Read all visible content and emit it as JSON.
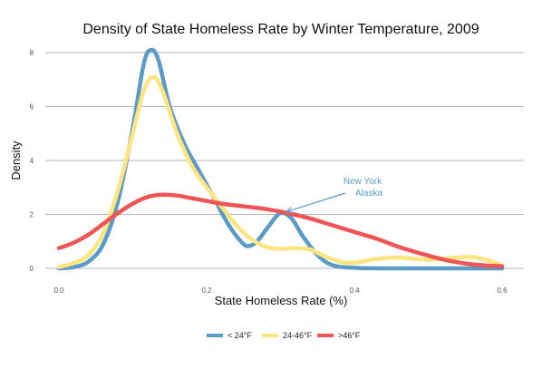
{
  "chart_data": {
    "type": "line",
    "title": "Density of State Homeless Rate by Winter Temperature, 2009",
    "xlabel": "State Homeless Rate (%)",
    "ylabel": "Density",
    "xlim": [
      0,
      0.6
    ],
    "ylim": [
      0,
      8
    ],
    "x_ticks": [
      "0.0",
      "0.2",
      "0.4",
      "0.6"
    ],
    "y_ticks": [
      "0",
      "2",
      "4",
      "6",
      "8"
    ],
    "grid": "horizontal",
    "legend_position": "bottom",
    "series": [
      {
        "name": "< 24°F",
        "color": "#5b9bc8",
        "points": [
          [
            0.0,
            0.0
          ],
          [
            0.02,
            0.05
          ],
          [
            0.04,
            0.25
          ],
          [
            0.06,
            0.9
          ],
          [
            0.08,
            2.5
          ],
          [
            0.1,
            5.2
          ],
          [
            0.115,
            7.6
          ],
          [
            0.125,
            8.1
          ],
          [
            0.135,
            7.7
          ],
          [
            0.15,
            6.0
          ],
          [
            0.17,
            4.6
          ],
          [
            0.19,
            3.6
          ],
          [
            0.21,
            2.6
          ],
          [
            0.23,
            1.6
          ],
          [
            0.25,
            0.9
          ],
          [
            0.26,
            0.85
          ],
          [
            0.27,
            1.05
          ],
          [
            0.285,
            1.6
          ],
          [
            0.3,
            2.05
          ],
          [
            0.315,
            1.85
          ],
          [
            0.33,
            1.2
          ],
          [
            0.35,
            0.5
          ],
          [
            0.37,
            0.12
          ],
          [
            0.4,
            0.02
          ],
          [
            0.45,
            0.0
          ],
          [
            0.6,
            0.0
          ]
        ]
      },
      {
        "name": "24-46°F",
        "color": "#ffe57f",
        "points": [
          [
            0.0,
            0.05
          ],
          [
            0.02,
            0.2
          ],
          [
            0.04,
            0.5
          ],
          [
            0.06,
            1.3
          ],
          [
            0.08,
            2.9
          ],
          [
            0.1,
            5.0
          ],
          [
            0.115,
            6.6
          ],
          [
            0.128,
            7.1
          ],
          [
            0.14,
            6.6
          ],
          [
            0.16,
            5.0
          ],
          [
            0.18,
            3.8
          ],
          [
            0.2,
            3.0
          ],
          [
            0.22,
            2.3
          ],
          [
            0.24,
            1.6
          ],
          [
            0.26,
            1.1
          ],
          [
            0.28,
            0.8
          ],
          [
            0.3,
            0.72
          ],
          [
            0.32,
            0.75
          ],
          [
            0.34,
            0.7
          ],
          [
            0.36,
            0.45
          ],
          [
            0.38,
            0.25
          ],
          [
            0.4,
            0.2
          ],
          [
            0.43,
            0.35
          ],
          [
            0.46,
            0.4
          ],
          [
            0.5,
            0.32
          ],
          [
            0.53,
            0.38
          ],
          [
            0.56,
            0.42
          ],
          [
            0.58,
            0.3
          ],
          [
            0.6,
            0.1
          ]
        ]
      },
      {
        "name": ">46°F",
        "color": "#ef5456",
        "points": [
          [
            0.0,
            0.75
          ],
          [
            0.02,
            0.95
          ],
          [
            0.04,
            1.25
          ],
          [
            0.06,
            1.65
          ],
          [
            0.08,
            2.05
          ],
          [
            0.1,
            2.4
          ],
          [
            0.12,
            2.65
          ],
          [
            0.14,
            2.73
          ],
          [
            0.16,
            2.7
          ],
          [
            0.18,
            2.6
          ],
          [
            0.2,
            2.5
          ],
          [
            0.22,
            2.4
          ],
          [
            0.25,
            2.3
          ],
          [
            0.28,
            2.2
          ],
          [
            0.31,
            2.05
          ],
          [
            0.34,
            1.85
          ],
          [
            0.37,
            1.6
          ],
          [
            0.4,
            1.35
          ],
          [
            0.43,
            1.1
          ],
          [
            0.46,
            0.8
          ],
          [
            0.49,
            0.55
          ],
          [
            0.52,
            0.33
          ],
          [
            0.55,
            0.18
          ],
          [
            0.58,
            0.1
          ],
          [
            0.6,
            0.08
          ]
        ]
      }
    ],
    "annotation": {
      "lines": [
        "New York",
        "Alaska"
      ],
      "color": "#5b9bc8",
      "arrow_to": [
        0.308,
        2.1
      ]
    }
  }
}
